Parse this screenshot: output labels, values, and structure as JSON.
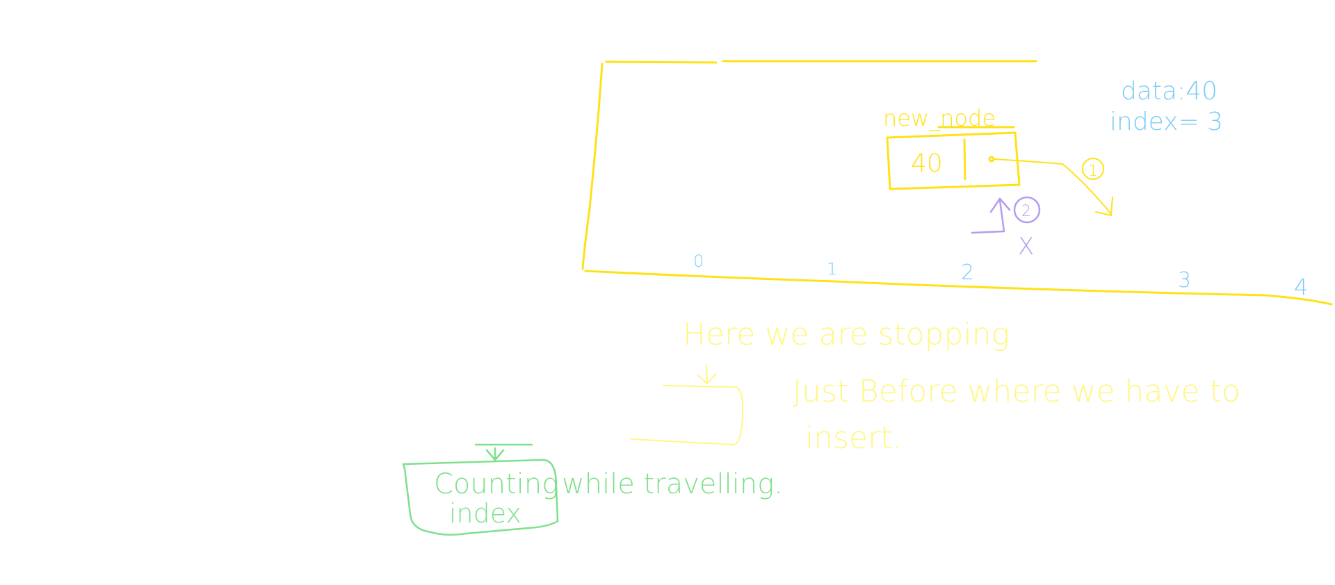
{
  "colors": {
    "background": "#FFFFFF",
    "yellow": "#FFE119",
    "pale_yellow": "#FFF782",
    "blue": "#7BCBF5",
    "purple": "#B59CF0",
    "green": "#7EE08B",
    "cursor": "#222222"
  },
  "info": {
    "data_line": "data:40",
    "index_line": "index= 3"
  },
  "node": {
    "label": "new_node",
    "value": "40"
  },
  "steps": {
    "step1": "1",
    "step2": "2",
    "cross": "X"
  },
  "indices": [
    "0",
    "1",
    "2",
    "3",
    "4"
  ],
  "notes": {
    "stopping": "Here we are stopping",
    "just_before": "Just Before where we have to",
    "insert": "insert.",
    "counting": "Counting",
    "index": "index",
    "while_travelling": "while travelling."
  }
}
